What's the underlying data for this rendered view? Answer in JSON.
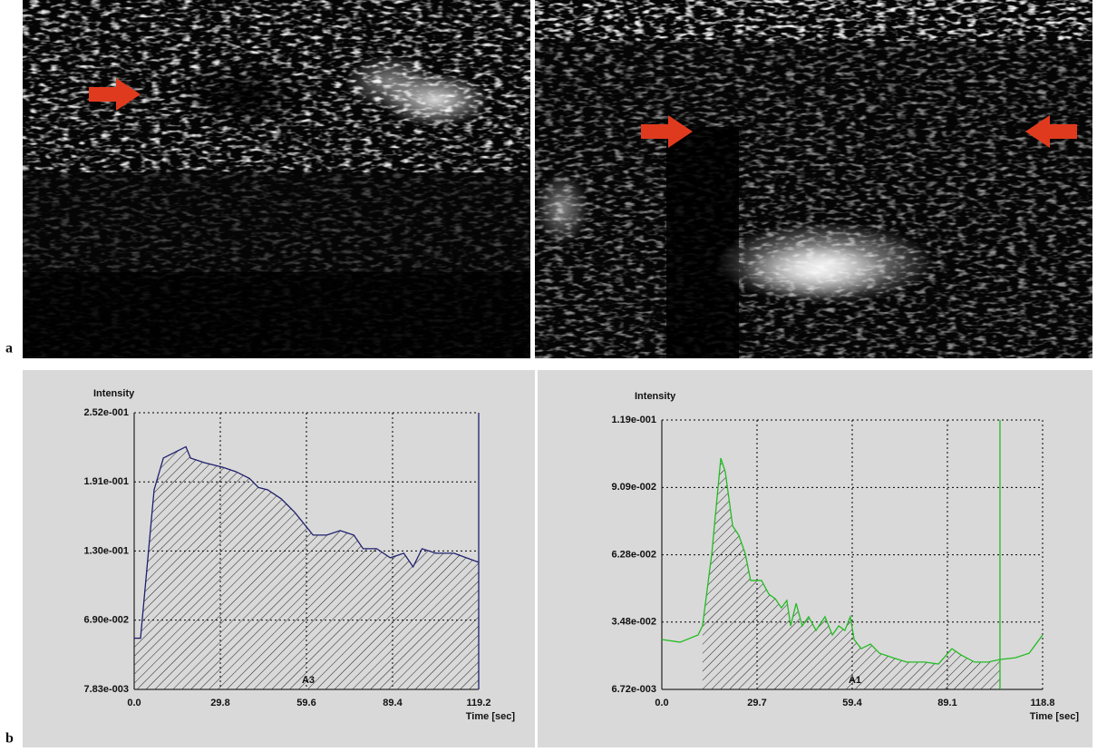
{
  "panel_labels": [
    "a",
    "b"
  ],
  "chart_data": [
    {
      "type": "line",
      "y_label": "Intensity",
      "x_label": "Time [sec]",
      "annotation": "A3",
      "color": "#1f1f6e",
      "grid": true,
      "x": [
        0,
        2.2,
        6.9,
        10.1,
        14.8,
        17.9,
        19.5,
        24.2,
        30.5,
        35.2,
        39.9,
        43.0,
        46.2,
        50.9,
        55.6,
        61.9,
        66.6,
        71.3,
        76.0,
        79.2,
        83.9,
        88.6,
        93.3,
        96.5,
        99.6,
        104.4,
        110.7,
        119.2
      ],
      "values": [
        0.053,
        0.053,
        0.184,
        0.212,
        0.218,
        0.222,
        0.212,
        0.208,
        0.204,
        0.2,
        0.194,
        0.186,
        0.184,
        0.176,
        0.164,
        0.144,
        0.144,
        0.148,
        0.144,
        0.132,
        0.132,
        0.124,
        0.128,
        0.116,
        0.132,
        0.128,
        0.128,
        0.12
      ],
      "xlim": [
        0,
        119.2
      ],
      "ylim": [
        0.00783,
        0.252
      ],
      "xticks": [
        {
          "value": 0,
          "label": "0.0"
        },
        29.8,
        59.6,
        89.4,
        119.2
      ],
      "yticks": [
        {
          "value": 0.00783,
          "label": "7.83e-003"
        },
        {
          "value": 0.069,
          "label": "6.90e-002"
        },
        {
          "value": 0.13,
          "label": "1.30e-001"
        },
        {
          "value": 0.191,
          "label": "1.91e-001"
        },
        {
          "value": 0.252,
          "label": "2.52e-001"
        }
      ],
      "shaded_range": [
        0,
        119.2
      ],
      "cursor_x": 119.2
    },
    {
      "type": "line",
      "y_label": "Intensity",
      "x_label": "Time [sec]",
      "annotation": "A1",
      "color": "#22bb22",
      "grid": true,
      "x": [
        0,
        5.7,
        11.3,
        12.7,
        15.6,
        18.4,
        19.8,
        22.1,
        24.0,
        26.0,
        27.7,
        31.1,
        33.4,
        35.4,
        37.3,
        39.0,
        40.2,
        41.9,
        43.8,
        45.8,
        48.1,
        50.9,
        53.2,
        55.2,
        57.1,
        58.8,
        60.0,
        62.2,
        65.1,
        67.9,
        72.1,
        76.4,
        82.0,
        86.3,
        90.5,
        93.3,
        97.6,
        101.8,
        105.5,
        110.3,
        114.6,
        118.8
      ],
      "values": [
        0.0275,
        0.0264,
        0.0294,
        0.0332,
        0.0634,
        0.1031,
        0.0974,
        0.0748,
        0.071,
        0.0634,
        0.0521,
        0.0521,
        0.0464,
        0.0445,
        0.0407,
        0.0438,
        0.0332,
        0.0426,
        0.0332,
        0.037,
        0.0313,
        0.037,
        0.0294,
        0.0332,
        0.0313,
        0.037,
        0.0275,
        0.0237,
        0.0256,
        0.0218,
        0.0199,
        0.0181,
        0.0181,
        0.0173,
        0.0237,
        0.0211,
        0.0181,
        0.0181,
        0.0192,
        0.0199,
        0.0218,
        0.0294
      ],
      "xlim": [
        0,
        118.8
      ],
      "ylim": [
        0.00672,
        0.119
      ],
      "xticks": [
        {
          "value": 0,
          "label": "0.0"
        },
        29.7,
        59.4,
        89.1,
        118.8
      ],
      "yticks": [
        {
          "value": 0.00672,
          "label": "6.72e-003"
        },
        {
          "value": 0.0348,
          "label": "3.48e-002"
        },
        {
          "value": 0.0628,
          "label": "6.28e-002"
        },
        {
          "value": 0.0909,
          "label": "9.09e-002"
        },
        {
          "value": 0.119,
          "label": "1.19e-001"
        }
      ],
      "shaded_range": [
        12.7,
        105.5
      ],
      "cursor_x": 105.5
    }
  ]
}
